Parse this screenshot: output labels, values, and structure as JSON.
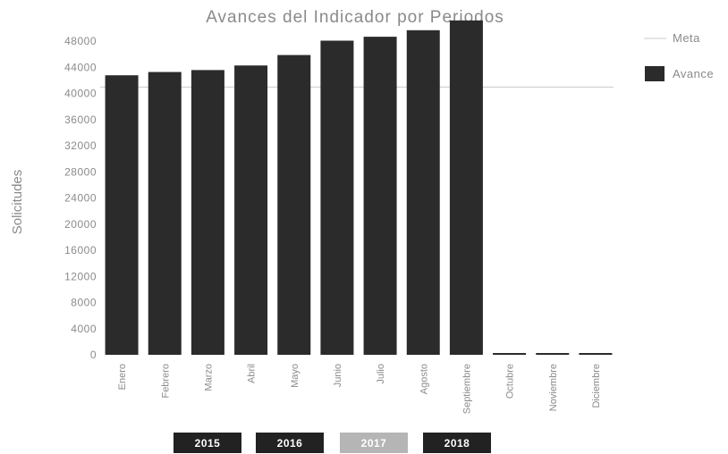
{
  "chart_data": {
    "type": "bar",
    "title": "Avances del Indicador por Periodos",
    "ylabel": "Solicitudes",
    "xlabel": "",
    "ylim": [
      0,
      52000
    ],
    "yticks": [
      0,
      4000,
      8000,
      12000,
      16000,
      20000,
      24000,
      28000,
      32000,
      36000,
      40000,
      44000,
      48000
    ],
    "categories": [
      "Enero",
      "Febrero",
      "Marzo",
      "Abril",
      "Mayo",
      "Junio",
      "Julio",
      "Agosto",
      "Septiembre",
      "Octubre",
      "Noviembre",
      "Diciembre"
    ],
    "series": [
      {
        "name": "Avance",
        "type": "bar",
        "color": "#2b2b2b",
        "values": [
          42800,
          43300,
          43600,
          44300,
          45900,
          48100,
          48700,
          49700,
          51200,
          0,
          0,
          0
        ]
      },
      {
        "name": "Meta",
        "type": "line",
        "color": "#c8c8c8",
        "value": 41000
      }
    ],
    "legend_position": "top-right",
    "grid": false
  },
  "year_buttons": [
    {
      "label": "2015",
      "active": true
    },
    {
      "label": "2016",
      "active": true
    },
    {
      "label": "2017",
      "active": false
    },
    {
      "label": "2018",
      "active": true
    }
  ],
  "colors": {
    "bar": "#2b2b2b",
    "meta_line": "#c8c8c8",
    "text": "#8a8a8a",
    "button_active": "#222222",
    "button_inactive": "#b5b5b5"
  }
}
